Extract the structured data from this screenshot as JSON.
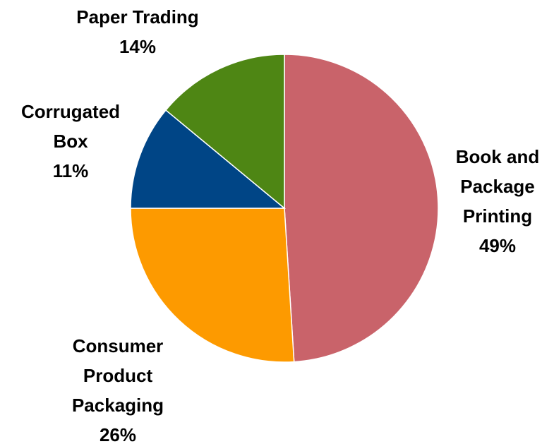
{
  "chart_data": {
    "type": "pie",
    "categories": [
      "Book and Package Printing",
      "Consumer Product Packaging",
      "Corrugated Box",
      "Paper Trading"
    ],
    "values": [
      49,
      26,
      11,
      14
    ],
    "value_labels": [
      "49%",
      "26%",
      "11%",
      "14%"
    ],
    "colors": [
      "#c9636a",
      "#fd9a00",
      "#004586",
      "#4e8614"
    ]
  }
}
